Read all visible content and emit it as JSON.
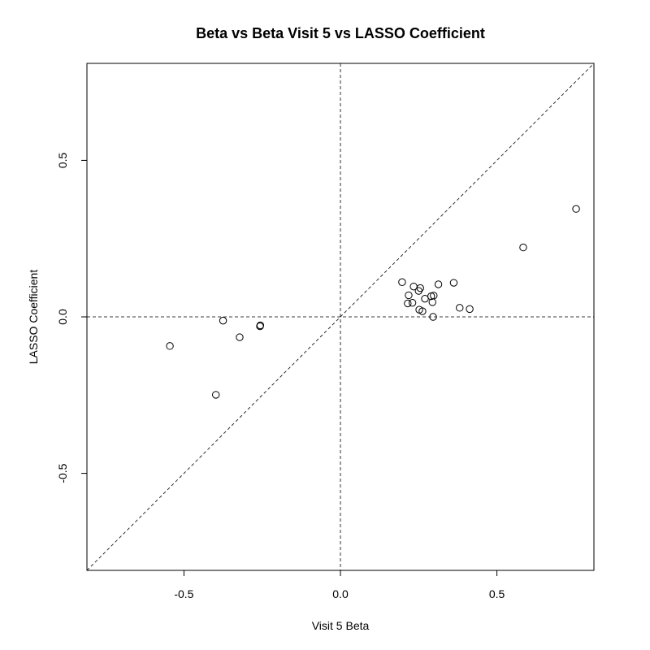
{
  "chart_data": {
    "type": "scatter",
    "title": "Beta vs Beta Visit 5 vs LASSO Coefficient",
    "xlabel": "Visit 5 Beta",
    "ylabel": "LASSO Coefficient",
    "xlim": [
      -0.81,
      0.81
    ],
    "ylim": [
      -0.81,
      0.81
    ],
    "x_ticks": [
      -0.5,
      0.0,
      0.5
    ],
    "x_tick_labels": [
      "-0.5",
      "0.0",
      "0.5"
    ],
    "y_ticks": [
      -0.5,
      0.0,
      0.5
    ],
    "y_tick_labels": [
      "-0.5",
      "0.0",
      "0.5"
    ],
    "reference_lines": [
      "y = x",
      "x = 0",
      "y = 0"
    ],
    "grid": false,
    "points": [
      {
        "x": -0.545,
        "y": -0.093
      },
      {
        "x": -0.398,
        "y": -0.249
      },
      {
        "x": -0.375,
        "y": -0.012
      },
      {
        "x": -0.322,
        "y": -0.065
      },
      {
        "x": -0.257,
        "y": -0.03
      },
      {
        "x": -0.256,
        "y": -0.027
      },
      {
        "x": 0.197,
        "y": 0.111
      },
      {
        "x": 0.215,
        "y": 0.043
      },
      {
        "x": 0.218,
        "y": 0.069
      },
      {
        "x": 0.23,
        "y": 0.045
      },
      {
        "x": 0.234,
        "y": 0.097
      },
      {
        "x": 0.25,
        "y": 0.083
      },
      {
        "x": 0.252,
        "y": 0.023
      },
      {
        "x": 0.255,
        "y": 0.092
      },
      {
        "x": 0.262,
        "y": 0.018
      },
      {
        "x": 0.27,
        "y": 0.058
      },
      {
        "x": 0.29,
        "y": 0.066
      },
      {
        "x": 0.294,
        "y": 0.047
      },
      {
        "x": 0.298,
        "y": 0.068
      },
      {
        "x": 0.296,
        "y": 0.0
      },
      {
        "x": 0.313,
        "y": 0.104
      },
      {
        "x": 0.362,
        "y": 0.109
      },
      {
        "x": 0.381,
        "y": 0.029
      },
      {
        "x": 0.413,
        "y": 0.025
      },
      {
        "x": 0.584,
        "y": 0.222
      },
      {
        "x": 0.753,
        "y": 0.345
      }
    ]
  }
}
